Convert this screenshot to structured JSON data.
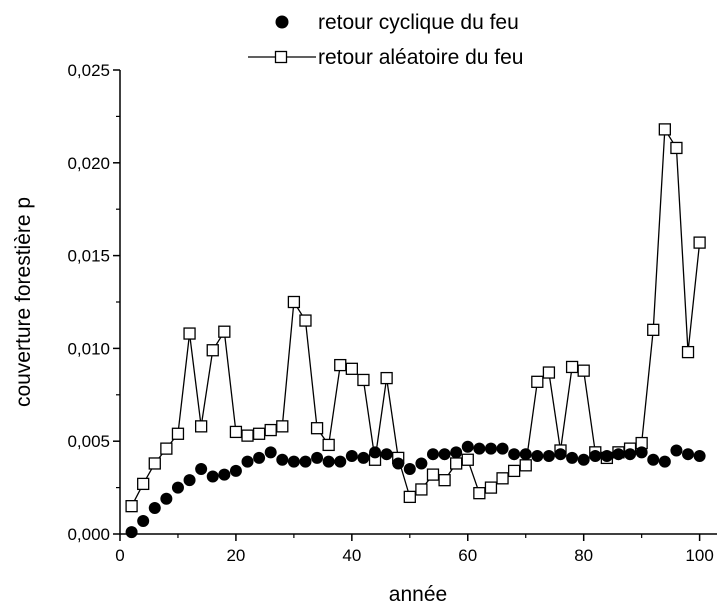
{
  "chart_data": {
    "type": "line",
    "xlabel": "année",
    "ylabel": "couverture forestière  p",
    "xlim": [
      0,
      103
    ],
    "ylim": [
      0,
      0.025
    ],
    "xticks": [
      0,
      20,
      40,
      60,
      80,
      100
    ],
    "xtick_labels": [
      "0",
      "20",
      "40",
      "60",
      "80",
      "100"
    ],
    "yticks": [
      0.0,
      0.005,
      0.01,
      0.015,
      0.02,
      0.025
    ],
    "ytick_labels": [
      "0,000",
      "0,005",
      "0,010",
      "0,015",
      "0,020",
      "0,025"
    ],
    "grid": false,
    "legend_position": "top",
    "series": [
      {
        "name": "retour cyclique du feu",
        "marker": "filled-circle",
        "line": false,
        "color": "#000000",
        "x": [
          2,
          4,
          6,
          8,
          10,
          12,
          14,
          16,
          18,
          20,
          22,
          24,
          26,
          28,
          30,
          32,
          34,
          36,
          38,
          40,
          42,
          44,
          46,
          48,
          50,
          52,
          54,
          56,
          58,
          60,
          62,
          64,
          66,
          68,
          70,
          72,
          74,
          76,
          78,
          80,
          82,
          84,
          86,
          88,
          90,
          92,
          94,
          96,
          98,
          100
        ],
        "y": [
          0.0001,
          0.0007,
          0.0014,
          0.0019,
          0.0025,
          0.0029,
          0.0035,
          0.0031,
          0.0032,
          0.0034,
          0.0039,
          0.0041,
          0.0044,
          0.004,
          0.0039,
          0.0039,
          0.0041,
          0.0039,
          0.0039,
          0.0042,
          0.0041,
          0.0044,
          0.0043,
          0.0038,
          0.0035,
          0.0038,
          0.0043,
          0.0043,
          0.0044,
          0.0047,
          0.0046,
          0.0046,
          0.0046,
          0.0043,
          0.0043,
          0.0042,
          0.0042,
          0.0043,
          0.0041,
          0.004,
          0.0042,
          0.0042,
          0.0043,
          0.0043,
          0.0044,
          0.004,
          0.0039,
          0.0045,
          0.0043,
          0.0042
        ]
      },
      {
        "name": "retour aléatoire du feu",
        "marker": "open-square",
        "line": true,
        "color": "#000000",
        "x": [
          2,
          4,
          6,
          8,
          10,
          12,
          14,
          16,
          18,
          20,
          22,
          24,
          26,
          28,
          30,
          32,
          34,
          36,
          38,
          40,
          42,
          44,
          46,
          48,
          50,
          52,
          54,
          56,
          58,
          60,
          62,
          64,
          66,
          68,
          70,
          72,
          74,
          76,
          78,
          80,
          82,
          84,
          86,
          88,
          90,
          92,
          94,
          96,
          98,
          100
        ],
        "y": [
          0.0015,
          0.0027,
          0.0038,
          0.0046,
          0.0054,
          0.0108,
          0.0058,
          0.0099,
          0.0109,
          0.0055,
          0.0053,
          0.0054,
          0.0056,
          0.0058,
          0.0125,
          0.0115,
          0.0057,
          0.0048,
          0.0091,
          0.0089,
          0.0083,
          0.004,
          0.0084,
          0.0041,
          0.002,
          0.0024,
          0.0032,
          0.0029,
          0.0038,
          0.004,
          0.0022,
          0.0025,
          0.003,
          0.0034,
          0.0037,
          0.0082,
          0.0087,
          0.0045,
          0.009,
          0.0088,
          0.0044,
          0.0041,
          0.0044,
          0.0046,
          0.0049,
          0.011,
          0.0218,
          0.0208,
          0.0098,
          0.0157
        ]
      }
    ]
  }
}
